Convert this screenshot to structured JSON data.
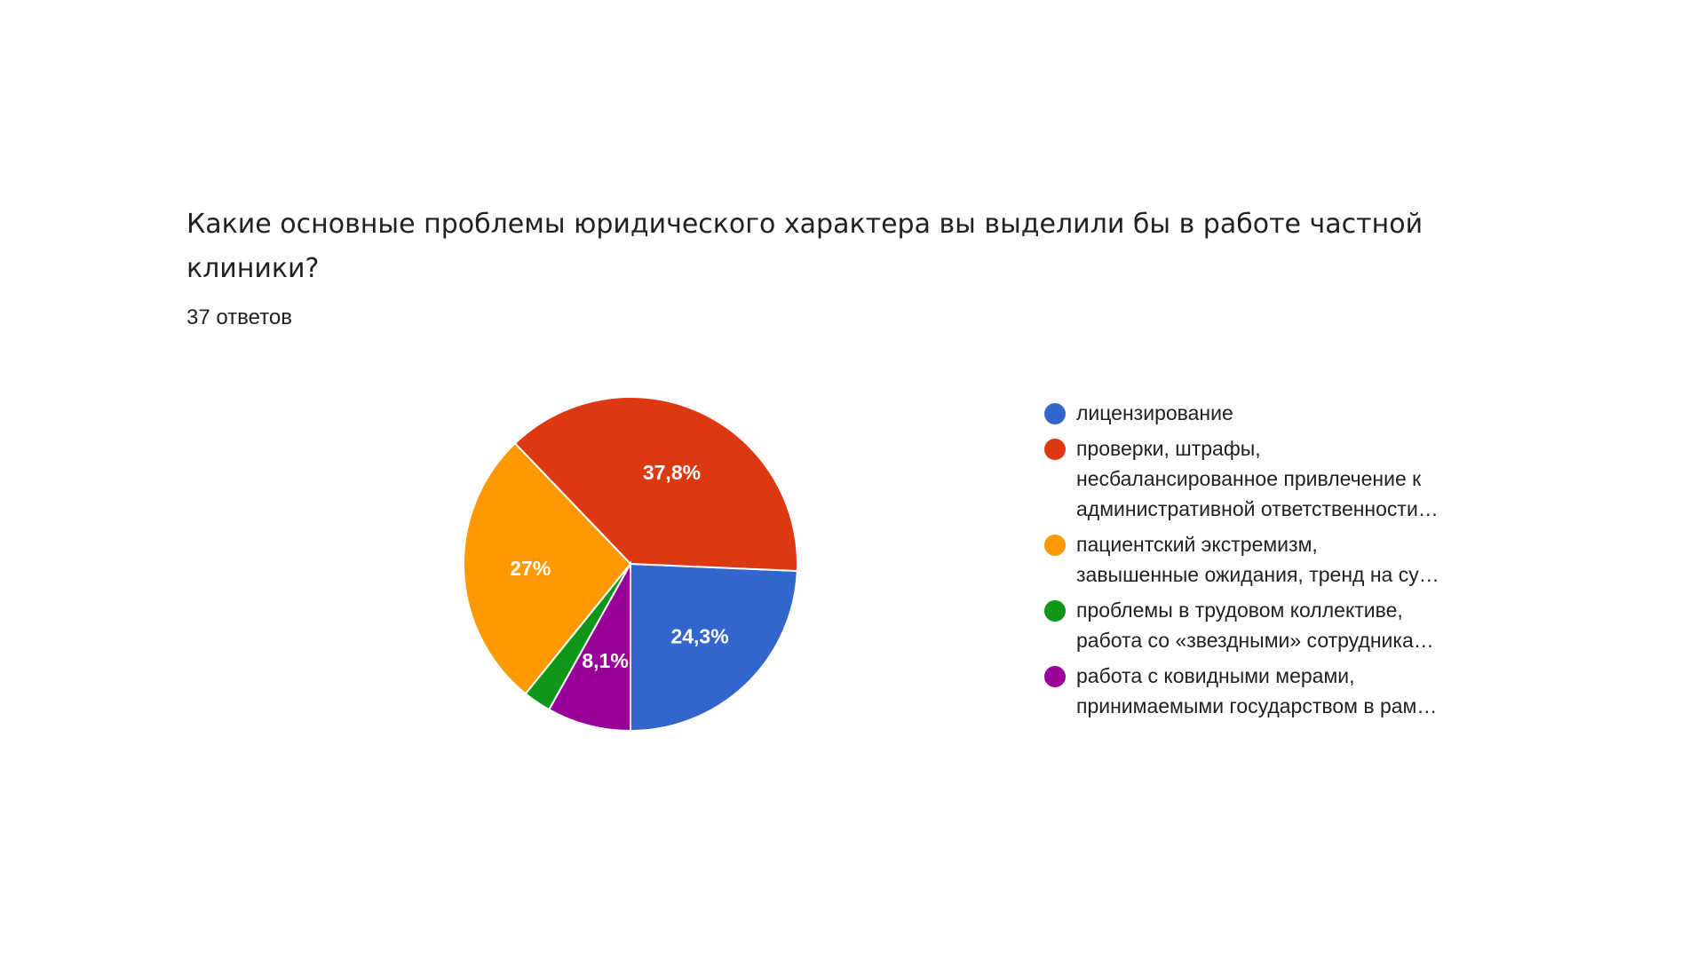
{
  "question": {
    "title": "Какие основные проблемы юридического характера вы выделили бы в работе частной клиники?",
    "responses": "37 ответов"
  },
  "colors": {
    "blue": "#3366cc",
    "red": "#dc3912",
    "orange": "#ff9900",
    "green": "#109618",
    "purple": "#990099"
  },
  "chart_data": {
    "type": "pie",
    "title": "Какие основные проблемы юридического характера вы выделили бы в работе частной клиники?",
    "legend_position": "right",
    "slices": [
      {
        "label_lines": [
          "лицензирование"
        ],
        "value": 24.3,
        "display": "24,3%",
        "color": "#3366cc"
      },
      {
        "label_lines": [
          "проверки, штрафы,",
          "несбалансированное привлечение к",
          "административной ответственности…"
        ],
        "value": 37.8,
        "display": "37,8%",
        "color": "#dc3912"
      },
      {
        "label_lines": [
          "пациентский экстремизм,",
          "завышенные ожидания, тренд на су…"
        ],
        "value": 27,
        "display": "27%",
        "color": "#ff9900"
      },
      {
        "label_lines": [
          "проблемы в трудовом коллективе,",
          "работа со «звездными» сотрудника…"
        ],
        "value": 2.7,
        "display": "",
        "color": "#109618"
      },
      {
        "label_lines": [
          "работа с ковидными мерами,",
          "принимаемыми государством в рам…"
        ],
        "value": 8.1,
        "display": "8,1%",
        "color": "#990099"
      }
    ]
  }
}
